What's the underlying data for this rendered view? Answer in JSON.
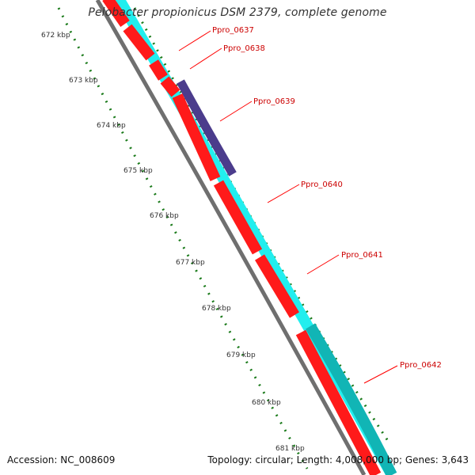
{
  "title": "Pelobacter propionicus DSM 2379, complete genome",
  "footer": {
    "accession": "Accession: NC_008609",
    "summary": "Topology: circular; Length: 4,008,000 bp; Genes: 3,643"
  },
  "scale_labels": [
    "672 kbp",
    "673 kbp",
    "674 kbp",
    "675 kbp",
    "676 kbp",
    "677 kbp",
    "678 kbp",
    "679 kbp",
    "680 kbp",
    "681 kbp"
  ],
  "gene_labels": [
    "Ppro_0637",
    "Ppro_0638",
    "Ppro_0639",
    "Ppro_0640",
    "Ppro_0641",
    "Ppro_0642"
  ],
  "colors": {
    "backbone": "#7f7f7f",
    "reverse_gene": "#ff0000",
    "forward_track": "#00ffff",
    "forward_track_dark": "#00aaaa",
    "highlight_gene": "#4b3c8c",
    "tick": "#1a7a1a",
    "label_line": "#ff0000",
    "label_text": "#cc0000"
  }
}
